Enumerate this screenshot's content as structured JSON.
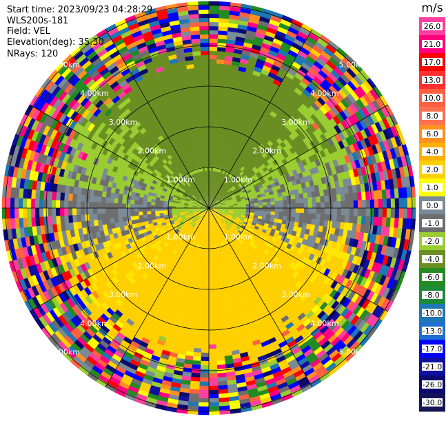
{
  "header": {
    "start_time": "Start time: 2023/09/23 04:28:29",
    "instrument": "WLS200s-181",
    "field": "Field: VEL",
    "elevation": "Elevation(deg): 35.30",
    "nrays": "NRays: 120"
  },
  "ppi": {
    "n_rays": 120,
    "n_sectors_labeled": 12,
    "range_rings_km": [
      1.0,
      2.0,
      3.0,
      4.0,
      5.0
    ],
    "ring_labels": [
      "1.00km",
      "2.00km",
      "3.00km",
      "4.00km",
      "5.00km"
    ],
    "max_range_km": 5.6,
    "grid_color": "#000000"
  },
  "colorbar": {
    "unit": "m/s",
    "ticks": [
      "26.0",
      "21.0",
      "17.0",
      "13.0",
      "10.0",
      "8.0",
      "6.0",
      "4.0",
      "2.0",
      "1.0",
      "0.0",
      "-1.0",
      "-2.0",
      "-4.0",
      "-6.0",
      "-8.0",
      "-10.0",
      "-13.0",
      "-17.0",
      "-21.0",
      "-26.0",
      "-30.0"
    ],
    "colors": [
      "#ff3fa0",
      "#ff007f",
      "#ff0000",
      "#ff3030",
      "#ff6040",
      "#ff7050",
      "#ff9020",
      "#ffb000",
      "#ffd000",
      "#ffff00",
      "#7a8a96",
      "#6e6e6e",
      "#9acd32",
      "#6b8e23",
      "#228b22",
      "#1e8b3a",
      "#1f77b4",
      "#1e6fd0",
      "#0000ff",
      "#1010a0",
      "#0a0a6e",
      "#141454"
    ]
  }
}
